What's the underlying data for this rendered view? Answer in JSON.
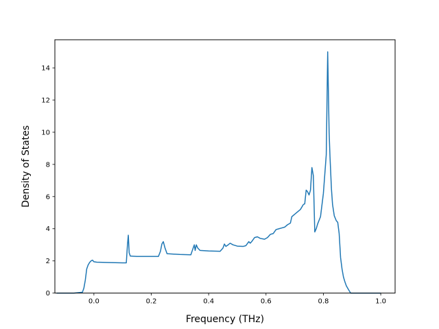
{
  "chart_data": {
    "type": "line",
    "title": "",
    "xlabel": "Frequency (THz)",
    "ylabel": "Density of States",
    "xlim": [
      -0.136,
      1.05
    ],
    "ylim": [
      0,
      15.75
    ],
    "x_ticks": [
      0.0,
      0.2,
      0.4,
      0.6,
      0.8,
      1.0
    ],
    "x_tick_labels": [
      "0.0",
      "0.2",
      "0.4",
      "0.6",
      "0.8",
      "1.0"
    ],
    "y_ticks": [
      0,
      2,
      4,
      6,
      8,
      10,
      12,
      14
    ],
    "y_tick_labels": [
      "0",
      "2",
      "4",
      "6",
      "8",
      "10",
      "12",
      "14"
    ],
    "grid": false,
    "legend": "none",
    "line_color": "#1f77b4",
    "series": [
      {
        "x": [
          -0.13,
          -0.07,
          -0.04,
          -0.035,
          -0.03,
          -0.025,
          -0.02,
          -0.015,
          -0.01,
          -0.005,
          0.0,
          0.01,
          0.05,
          0.1,
          0.113,
          0.117,
          0.12,
          0.123,
          0.127,
          0.13,
          0.15,
          0.2,
          0.225,
          0.232,
          0.237,
          0.242,
          0.248,
          0.255,
          0.3,
          0.338,
          0.345,
          0.35,
          0.353,
          0.357,
          0.362,
          0.37,
          0.4,
          0.44,
          0.45,
          0.455,
          0.46,
          0.468,
          0.475,
          0.485,
          0.5,
          0.52,
          0.53,
          0.54,
          0.545,
          0.55,
          0.56,
          0.57,
          0.58,
          0.595,
          0.605,
          0.615,
          0.625,
          0.635,
          0.645,
          0.655,
          0.665,
          0.675,
          0.685,
          0.69,
          0.7,
          0.71,
          0.72,
          0.73,
          0.735,
          0.74,
          0.745,
          0.75,
          0.755,
          0.76,
          0.765,
          0.77,
          0.775,
          0.78,
          0.79,
          0.8,
          0.805,
          0.81,
          0.815,
          0.82,
          0.823,
          0.828,
          0.832,
          0.838,
          0.845,
          0.85,
          0.855,
          0.86,
          0.865,
          0.87,
          0.875,
          0.88,
          0.888,
          0.895,
          0.905,
          0.95,
          1.0
        ],
        "y": [
          0.0,
          0.0,
          0.05,
          0.3,
          0.8,
          1.5,
          1.75,
          1.9,
          2.0,
          2.05,
          1.95,
          1.92,
          1.9,
          1.88,
          1.88,
          3.0,
          3.6,
          2.5,
          2.3,
          2.3,
          2.28,
          2.28,
          2.28,
          2.6,
          3.05,
          3.2,
          2.8,
          2.45,
          2.4,
          2.38,
          2.75,
          3.0,
          2.65,
          3.0,
          2.8,
          2.65,
          2.62,
          2.6,
          2.8,
          3.05,
          2.9,
          3.0,
          3.1,
          3.0,
          2.92,
          2.9,
          2.95,
          3.2,
          3.1,
          3.2,
          3.45,
          3.5,
          3.4,
          3.35,
          3.45,
          3.65,
          3.7,
          3.95,
          4.0,
          4.05,
          4.1,
          4.25,
          4.35,
          4.75,
          4.9,
          5.05,
          5.2,
          5.5,
          5.55,
          6.4,
          6.3,
          6.1,
          6.4,
          7.8,
          7.3,
          3.8,
          4.0,
          4.3,
          4.75,
          6.2,
          7.4,
          8.6,
          15.0,
          10.0,
          8.5,
          6.5,
          5.5,
          4.8,
          4.5,
          4.4,
          3.7,
          2.2,
          1.5,
          1.0,
          0.7,
          0.45,
          0.2,
          0.0,
          0.0,
          0.0,
          0.0
        ]
      }
    ]
  }
}
